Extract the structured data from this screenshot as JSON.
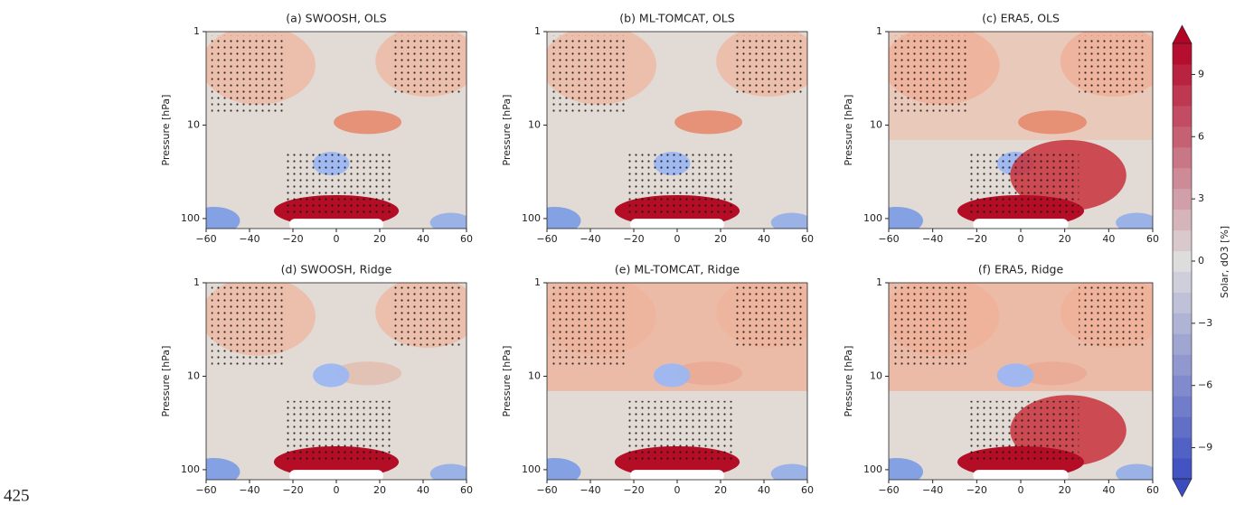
{
  "chart_data": [
    {
      "type": "contour",
      "title": "(a) SWOOSH, OLS",
      "ylabel": "Pressure [hPa]",
      "xlim": [
        -60,
        60
      ],
      "xticks": [
        {
          "value": -60,
          "label": "−60"
        },
        {
          "value": -40,
          "label": "−40"
        },
        {
          "value": -20,
          "label": "−20"
        },
        0,
        20,
        40,
        60
      ],
      "ylim": [
        128,
        1
      ],
      "yticks": [
        1,
        10,
        100
      ],
      "log_y": true
    },
    {
      "type": "contour",
      "title": "(b) ML-TOMCAT, OLS",
      "ylabel": "Pressure [hPa]",
      "xlim": [
        -60,
        60
      ],
      "xticks": [
        {
          "value": -60,
          "label": "−60"
        },
        {
          "value": -40,
          "label": "−40"
        },
        {
          "value": -20,
          "label": "−20"
        },
        0,
        20,
        40,
        60
      ],
      "ylim": [
        128,
        1
      ],
      "yticks": [
        1,
        10,
        100
      ],
      "log_y": true
    },
    {
      "type": "contour",
      "title": "(c) ERA5, OLS",
      "ylabel": "Pressure [hPa]",
      "xlim": [
        -60,
        60
      ],
      "xticks": [
        {
          "value": -60,
          "label": "−60"
        },
        {
          "value": -40,
          "label": "−40"
        },
        {
          "value": -20,
          "label": "−20"
        },
        0,
        20,
        40,
        60
      ],
      "ylim": [
        128,
        1
      ],
      "yticks": [
        1,
        10,
        100
      ],
      "log_y": true
    },
    {
      "type": "contour",
      "title": "(d) SWOOSH, Ridge",
      "ylabel": "Pressure [hPa]",
      "xlim": [
        -60,
        60
      ],
      "xticks": [
        {
          "value": -60,
          "label": "−60"
        },
        {
          "value": -40,
          "label": "−40"
        },
        {
          "value": -20,
          "label": "−20"
        },
        0,
        20,
        40,
        60
      ],
      "ylim": [
        128,
        1
      ],
      "yticks": [
        1,
        10,
        100
      ],
      "log_y": true
    },
    {
      "type": "contour",
      "title": "(e) ML-TOMCAT, Ridge",
      "ylabel": "Pressure [hPa]",
      "xlim": [
        -60,
        60
      ],
      "xticks": [
        {
          "value": -60,
          "label": "−60"
        },
        {
          "value": -40,
          "label": "−40"
        },
        {
          "value": -20,
          "label": "−20"
        },
        0,
        20,
        40,
        60
      ],
      "ylim": [
        128,
        1
      ],
      "yticks": [
        1,
        10,
        100
      ],
      "log_y": true
    },
    {
      "type": "contour",
      "title": "(f) ERA5, Ridge",
      "ylabel": "Pressure [hPa]",
      "xlim": [
        -60,
        60
      ],
      "xticks": [
        {
          "value": -60,
          "label": "−60"
        },
        {
          "value": -40,
          "label": "−40"
        },
        {
          "value": -20,
          "label": "−20"
        },
        0,
        20,
        40,
        60
      ],
      "ylim": [
        128,
        1
      ],
      "yticks": [
        1,
        10,
        100
      ],
      "log_y": true
    },
    {
      "type": "colorbar",
      "label": "Solar, dO3 [%]",
      "lim": [
        -10.5,
        10.5
      ],
      "ticks": [
        {
          "value": -9,
          "label": "−9"
        },
        {
          "value": -6,
          "label": "−6"
        },
        {
          "value": -3,
          "label": "−3"
        },
        0,
        3,
        6,
        9
      ]
    }
  ],
  "page_number": "425"
}
